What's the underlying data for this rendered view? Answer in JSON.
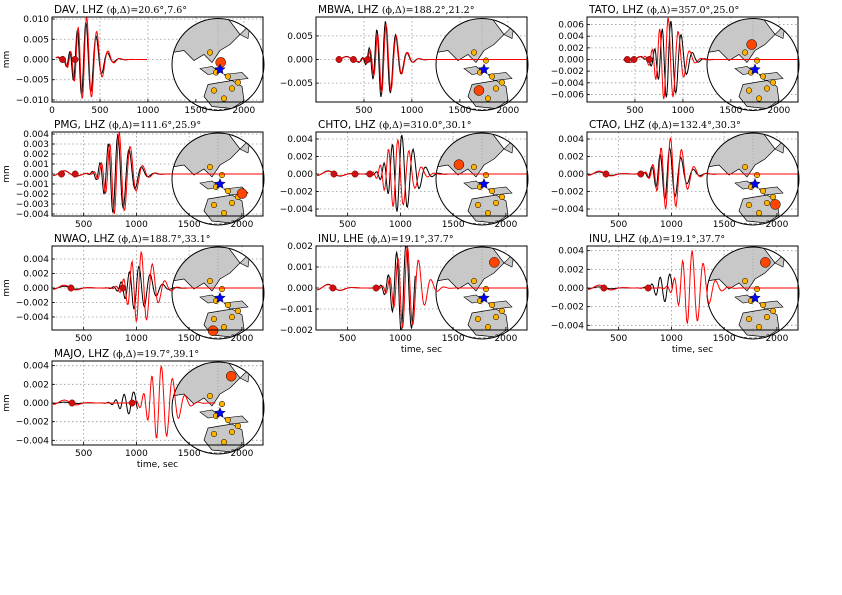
{
  "colors": {
    "observed": "#000000",
    "synthetic": "#ff0000",
    "land": "#c8c8c8",
    "event": "#0000ff",
    "station_current": "#ff4500",
    "station_other": "#ffb300",
    "pick": "#d01010"
  },
  "icons": {
    "event": "star-icon",
    "station": "circle-marker"
  },
  "chart_data": [
    {
      "type": "line",
      "title": "DAV, LHZ $(\\phi,\\Delta)\\!=\\!20.6^\\circ,7.6^\\circ$",
      "title_text": "DAV, LHZ",
      "title_math": "(ϕ,Δ)=20.6°,7.6°",
      "ylabel": "mm",
      "xlabel": "",
      "xlim": [
        0,
        2200
      ],
      "ylim": [
        -0.0105,
        0.0105
      ],
      "yticks": [
        "0.010",
        "0.005",
        "0.000",
        "−0.005",
        "−0.010"
      ],
      "ytick_values": [
        0.01,
        0.005,
        0,
        -0.005,
        -0.01
      ],
      "xticks": [
        "0",
        "500",
        "1000",
        "1500",
        "2000"
      ],
      "xtick_values": [
        0,
        500,
        1000,
        1500,
        2000
      ],
      "series": [
        {
          "values_desc": "observed",
          "start": 40,
          "end": 990,
          "peak_time": 330,
          "peak": 0.0092
        },
        {
          "values_desc": "synthetic",
          "start": 40,
          "end": 990,
          "peak_time": 345,
          "peak": 0.0105
        }
      ],
      "picks": [
        110,
        240
      ],
      "map": {
        "station_azimuth_deg": 20.6,
        "distance_deg": 7.6
      }
    },
    {
      "type": "line",
      "title_text": "MBWA, LHZ",
      "title_math": "(ϕ,Δ)=188.2°,21.2°",
      "ylabel": "",
      "xlabel": "",
      "xlim": [
        0,
        2200
      ],
      "ylim": [
        -0.009,
        0.009
      ],
      "yticks": [
        "0.005",
        "0.000",
        "−0.005"
      ],
      "ytick_values": [
        0.005,
        0,
        -0.005
      ],
      "xticks": [
        "500",
        "1000",
        "1500",
        "2000"
      ],
      "xtick_values": [
        500,
        1000,
        1500,
        2000
      ],
      "series": [
        {
          "values_desc": "observed",
          "start": 220,
          "end": 2200,
          "peak_time": 700,
          "peak": 0.0083
        },
        {
          "values_desc": "synthetic",
          "start": 220,
          "end": 2200,
          "peak_time": 715,
          "peak": 0.0075
        }
      ],
      "picks": [
        240,
        390,
        540
      ],
      "map": {
        "station_azimuth_deg": 188.2,
        "distance_deg": 21.2
      }
    },
    {
      "type": "line",
      "title_text": "TATO, LHZ",
      "title_math": "(ϕ,Δ)=357.0°,25.0°",
      "ylabel": "",
      "xlabel": "",
      "xlim": [
        0,
        2200
      ],
      "ylim": [
        -0.0073,
        0.0073
      ],
      "yticks": [
        "0.006",
        "0.004",
        "0.002",
        "0.000",
        "−0.002",
        "−0.004",
        "−0.006"
      ],
      "ytick_values": [
        0.006,
        0.004,
        0.002,
        0,
        -0.002,
        -0.004,
        -0.006
      ],
      "xticks": [
        "500",
        "1000",
        "1500",
        "2000"
      ],
      "xtick_values": [
        500,
        1000,
        1500,
        2000
      ],
      "series": [
        {
          "values_desc": "observed",
          "start": 380,
          "end": 2200,
          "peak_time": 850,
          "peak": 0.0068
        },
        {
          "values_desc": "synthetic",
          "start": 380,
          "end": 2200,
          "peak_time": 830,
          "peak": 0.0073
        }
      ],
      "picks": [
        420,
        490,
        650
      ],
      "map": {
        "station_azimuth_deg": 357.0,
        "distance_deg": 25.0
      }
    },
    {
      "type": "line",
      "title_text": "PMG, LHZ",
      "title_math": "(ϕ,Δ)=111.6°,25.9°",
      "ylabel": "mm",
      "xlabel": "",
      "xlim": [
        200,
        2200
      ],
      "ylim": [
        -0.0042,
        0.0042
      ],
      "yticks": [
        "0.004",
        "0.003",
        "0.002",
        "0.001",
        "0.000",
        "−0.001",
        "−0.002",
        "−0.003",
        "−0.004"
      ],
      "ytick_values": [
        0.004,
        0.003,
        0.002,
        0.001,
        0,
        -0.001,
        -0.002,
        -0.003,
        -0.004
      ],
      "xticks": [
        "500",
        "1000",
        "1500",
        "2000"
      ],
      "xtick_values": [
        500,
        1000,
        1500,
        2000
      ],
      "series": [
        {
          "values_desc": "observed",
          "start": 210,
          "end": 2200,
          "peak_time": 800,
          "peak": 0.004
        },
        {
          "values_desc": "synthetic",
          "start": 210,
          "end": 2200,
          "peak_time": 820,
          "peak": 0.0042
        }
      ],
      "picks": [
        290,
        420
      ],
      "map": {
        "station_azimuth_deg": 111.6,
        "distance_deg": 25.9
      }
    },
    {
      "type": "line",
      "title_text": "CHTO, LHZ",
      "title_math": "(ϕ,Δ)=310.0°,30.1°",
      "ylabel": "",
      "xlabel": "",
      "xlim": [
        200,
        2200
      ],
      "ylim": [
        -0.0048,
        0.0048
      ],
      "yticks": [
        "0.004",
        "0.002",
        "0.000",
        "−0.002",
        "−0.004"
      ],
      "ytick_values": [
        0.004,
        0.002,
        0,
        -0.002,
        -0.004
      ],
      "xticks": [
        "500",
        "1000",
        "1500",
        "2000"
      ],
      "xtick_values": [
        500,
        1000,
        1500,
        2000
      ],
      "series": [
        {
          "values_desc": "observed",
          "start": 210,
          "end": 2200,
          "peak_time": 990,
          "peak": 0.0045
        },
        {
          "values_desc": "synthetic",
          "start": 210,
          "end": 2200,
          "peak_time": 960,
          "peak": 0.004
        }
      ],
      "picks": [
        370,
        570,
        710
      ],
      "map": {
        "station_azimuth_deg": 310.0,
        "distance_deg": 30.1
      }
    },
    {
      "type": "line",
      "title_text": "CTAO, LHZ",
      "title_math": "(ϕ,Δ)=132.4°,30.3°",
      "ylabel": "",
      "xlabel": "",
      "xlim": [
        200,
        2200
      ],
      "ylim": [
        -0.0048,
        0.0048
      ],
      "yticks": [
        "0.004",
        "0.002",
        "0.000",
        "−0.002",
        "−0.004"
      ],
      "ytick_values": [
        0.004,
        0.002,
        0,
        -0.002,
        -0.004
      ],
      "xticks": [
        "500",
        "1000",
        "1500",
        "2000"
      ],
      "xtick_values": [
        500,
        1000,
        1500,
        2000
      ],
      "series": [
        {
          "values_desc": "observed",
          "start": 210,
          "end": 2200,
          "peak_time": 960,
          "peak": 0.003
        },
        {
          "values_desc": "synthetic",
          "start": 210,
          "end": 2200,
          "peak_time": 975,
          "peak": 0.0042
        }
      ],
      "picks": [
        380,
        710
      ],
      "map": {
        "station_azimuth_deg": 132.4,
        "distance_deg": 30.3
      }
    },
    {
      "type": "line",
      "title_text": "NWAO, LHZ",
      "title_math": "(ϕ,Δ)=188.7°,33.1°",
      "ylabel": "mm",
      "xlabel": "",
      "xlim": [
        200,
        2200
      ],
      "ylim": [
        -0.0058,
        0.0058
      ],
      "yticks": [
        "0.004",
        "0.002",
        "0.000",
        "−0.002",
        "−0.004"
      ],
      "ytick_values": [
        0.004,
        0.002,
        0,
        -0.002,
        -0.004
      ],
      "xticks": [
        "500",
        "1000",
        "1500",
        "2000"
      ],
      "xtick_values": [
        500,
        1000,
        1500,
        2000
      ],
      "series": [
        {
          "values_desc": "observed",
          "start": 210,
          "end": 2200,
          "peak_time": 1000,
          "peak": 0.003
        },
        {
          "values_desc": "synthetic",
          "start": 210,
          "end": 2200,
          "peak_time": 1030,
          "peak": 0.005
        }
      ],
      "picks": [
        380,
        870
      ],
      "map": {
        "station_azimuth_deg": 188.7,
        "distance_deg": 33.1
      }
    },
    {
      "type": "line",
      "title_text": "INU, LHE",
      "title_math": "(ϕ,Δ)=19.1°,37.7°",
      "ylabel": "",
      "xlabel": "time, sec",
      "xlim": [
        200,
        2200
      ],
      "ylim": [
        -0.002,
        0.002
      ],
      "yticks": [
        "0.002",
        "0.001",
        "0.000",
        "−0.001",
        "−0.002"
      ],
      "ytick_values": [
        0.002,
        0.001,
        0,
        -0.001,
        -0.002
      ],
      "xticks": [
        "500",
        "1000",
        "1500",
        "2000"
      ],
      "xtick_values": [
        500,
        1000,
        1500,
        2000
      ],
      "series": [
        {
          "values_desc": "observed",
          "start": 210,
          "end": 1140,
          "peak_time": 1030,
          "peak": 0.0022
        },
        {
          "values_desc": "synthetic",
          "start": 210,
          "end": 2200,
          "peak_time": 1050,
          "peak": 0.002
        }
      ],
      "picks": [
        360,
        770
      ],
      "map": {
        "station_azimuth_deg": 19.1,
        "distance_deg": 37.7
      }
    },
    {
      "type": "line",
      "title_text": "INU, LHZ",
      "title_math": "(ϕ,Δ)=19.1°,37.7°",
      "ylabel": "",
      "xlabel": "time, sec",
      "xlim": [
        200,
        2200
      ],
      "ylim": [
        -0.0045,
        0.0045
      ],
      "yticks": [
        "0.004",
        "0.002",
        "0.000",
        "−0.002",
        "−0.004"
      ],
      "ytick_values": [
        0.004,
        0.002,
        0,
        -0.002,
        -0.004
      ],
      "xticks": [
        "500",
        "1000",
        "1500",
        "2000"
      ],
      "xtick_values": [
        500,
        1000,
        1500,
        2000
      ],
      "series": [
        {
          "values_desc": "observed",
          "start": 210,
          "end": 1010,
          "peak_time": 960,
          "peak": 0.0015
        },
        {
          "values_desc": "synthetic",
          "start": 210,
          "end": 2200,
          "peak_time": 1180,
          "peak": 0.004
        }
      ],
      "picks": [
        360,
        780
      ],
      "map": {
        "station_azimuth_deg": 19.1,
        "distance_deg": 37.7
      }
    },
    {
      "type": "line",
      "title_text": "MAJO, LHZ",
      "title_math": "(ϕ,Δ)=19.7°,39.1°",
      "ylabel": "mm",
      "xlabel": "time, sec",
      "xlim": [
        200,
        2200
      ],
      "ylim": [
        -0.0045,
        0.0045
      ],
      "yticks": [
        "0.004",
        "0.002",
        "0.000",
        "−0.002",
        "−0.004"
      ],
      "ytick_values": [
        0.004,
        0.002,
        0,
        -0.002,
        -0.004
      ],
      "xticks": [
        "500",
        "1000",
        "1500",
        "2000"
      ],
      "xtick_values": [
        500,
        1000,
        1500,
        2000
      ],
      "series": [
        {
          "values_desc": "observed",
          "start": 210,
          "end": 1010,
          "peak_time": 950,
          "peak": 0.0012
        },
        {
          "values_desc": "synthetic",
          "start": 210,
          "end": 1750,
          "peak_time": 1220,
          "peak": 0.004
        }
      ],
      "picks": [
        390,
        960
      ],
      "map": {
        "station_azimuth_deg": 19.7,
        "distance_deg": 39.1
      }
    }
  ]
}
